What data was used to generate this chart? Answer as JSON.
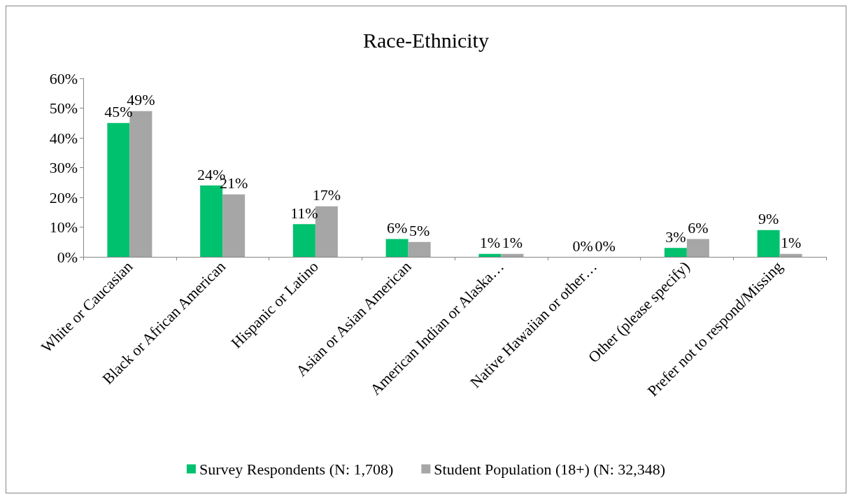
{
  "chart_data": {
    "type": "bar",
    "title": "Race-Ethnicity",
    "categories": [
      "White or Caucasian",
      "Black or African American",
      "Hispanic or Latino",
      "Asian or Asian American",
      "American Indian or Alaska…",
      "Native Hawaiian or other…",
      "Other (please specify)",
      "Prefer not to respond/Missing"
    ],
    "series": [
      {
        "name": "Survey Respondents (N: 1,708)",
        "color": "#00c16e",
        "values": [
          45,
          24,
          11,
          6,
          1,
          0,
          3,
          9
        ],
        "value_labels": [
          "45%",
          "24%",
          "11%",
          "6%",
          "1%",
          "0%",
          "3%",
          "9%"
        ]
      },
      {
        "name": "Student Population (18+) (N: 32,348)",
        "color": "#a6a6a6",
        "values": [
          49,
          21,
          17,
          5,
          1,
          0,
          6,
          1
        ],
        "value_labels": [
          "49%",
          "21%",
          "17%",
          "5%",
          "1%",
          "0%",
          "6%",
          "1%"
        ]
      }
    ],
    "ylim": [
      0,
      60
    ],
    "yticks": [
      {
        "value": 0,
        "label": "0%"
      },
      {
        "value": 10,
        "label": "10%"
      },
      {
        "value": 20,
        "label": "20%"
      },
      {
        "value": 30,
        "label": "30%"
      },
      {
        "value": 40,
        "label": "40%"
      },
      {
        "value": 50,
        "label": "50%"
      },
      {
        "value": 60,
        "label": "60%"
      }
    ],
    "grid": false,
    "legend": "bottom"
  }
}
